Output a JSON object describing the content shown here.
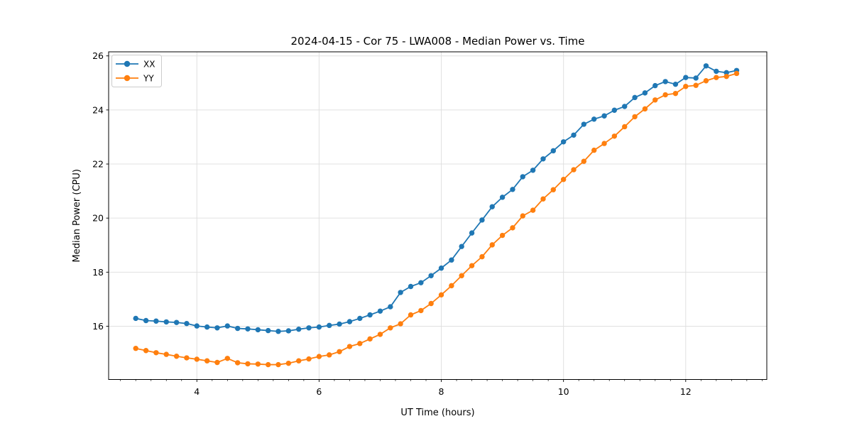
{
  "figure": {
    "title": "2024-04-15 - Cor 75 - LWA008 - Median Power vs. Time",
    "background": "#ffffff"
  },
  "chart_data": {
    "type": "line",
    "title": "2024-04-15 - Cor 75 - LWA008 - Median Power vs. Time",
    "xlabel": "UT Time (hours)",
    "ylabel": "Median Power (CPU)",
    "xlim": [
      2.556,
      13.327
    ],
    "ylim": [
      14.03,
      26.15
    ],
    "x_major_ticks": [
      4,
      6,
      8,
      10,
      12
    ],
    "x_minor_tick_step": 0.25,
    "y_major_ticks": [
      16,
      18,
      20,
      22,
      24,
      26
    ],
    "grid": true,
    "grid_color": "#e0e0e0",
    "legend_position": "upper-left",
    "marker": "circle",
    "x": [
      3.0,
      3.167,
      3.333,
      3.5,
      3.667,
      3.833,
      4.0,
      4.167,
      4.333,
      4.5,
      4.667,
      4.833,
      5.0,
      5.167,
      5.333,
      5.5,
      5.667,
      5.833,
      6.0,
      6.167,
      6.333,
      6.5,
      6.667,
      6.833,
      7.0,
      7.167,
      7.333,
      7.5,
      7.667,
      7.833,
      8.0,
      8.167,
      8.333,
      8.5,
      8.667,
      8.833,
      9.0,
      9.167,
      9.333,
      9.5,
      9.667,
      9.833,
      10.0,
      10.167,
      10.333,
      10.5,
      10.667,
      10.833,
      11.0,
      11.167,
      11.333,
      11.5,
      11.667,
      11.833,
      12.0,
      12.167,
      12.333,
      12.5,
      12.667,
      12.833
    ],
    "series": [
      {
        "name": "XX",
        "color": "#1f77b4",
        "values": [
          16.29,
          16.21,
          16.19,
          16.16,
          16.14,
          16.1,
          16.01,
          15.97,
          15.94,
          16.01,
          15.92,
          15.9,
          15.87,
          15.84,
          15.81,
          15.83,
          15.89,
          15.94,
          15.97,
          16.03,
          16.08,
          16.17,
          16.29,
          16.42,
          16.56,
          16.72,
          17.25,
          17.47,
          17.61,
          17.87,
          18.15,
          18.45,
          18.95,
          19.45,
          19.93,
          20.42,
          20.77,
          21.06,
          21.53,
          21.77,
          22.19,
          22.49,
          22.82,
          23.07,
          23.47,
          23.66,
          23.78,
          23.99,
          24.13,
          24.46,
          24.63,
          24.9,
          25.05,
          24.95,
          25.2,
          25.18,
          25.63,
          25.43,
          25.38,
          25.46
        ]
      },
      {
        "name": "YY",
        "color": "#ff7f0e",
        "values": [
          15.18,
          15.1,
          15.02,
          14.96,
          14.89,
          14.83,
          14.78,
          14.72,
          14.66,
          14.81,
          14.65,
          14.61,
          14.6,
          14.58,
          14.58,
          14.63,
          14.72,
          14.79,
          14.88,
          14.94,
          15.06,
          15.25,
          15.36,
          15.53,
          15.7,
          15.94,
          16.09,
          16.42,
          16.58,
          16.84,
          17.16,
          17.5,
          17.87,
          18.24,
          18.57,
          19.01,
          19.36,
          19.64,
          20.08,
          20.29,
          20.71,
          21.05,
          21.43,
          21.79,
          22.1,
          22.51,
          22.76,
          23.03,
          23.38,
          23.75,
          24.04,
          24.37,
          24.56,
          24.61,
          24.87,
          24.91,
          25.08,
          25.2,
          25.24,
          25.35
        ]
      }
    ]
  }
}
